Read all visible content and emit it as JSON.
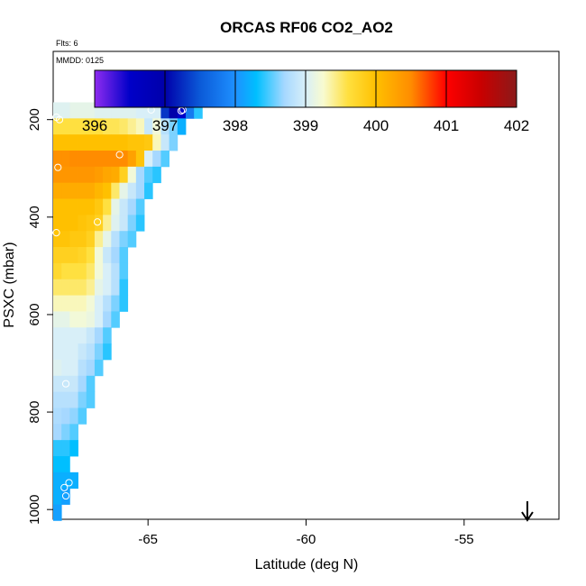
{
  "chart_data": {
    "type": "heatmap",
    "title": "ORCAS RF06 CO2_AO2",
    "flights_note": "Flts: 6",
    "date_note": "MMDD: 0125",
    "xlabel": "Latitude (deg N)",
    "ylabel": "PSXC (mbar)",
    "xlim": [
      -68.0,
      -52.0
    ],
    "ylim": [
      1020,
      60
    ],
    "y_reversed": true,
    "x_ticks": [
      -65,
      -60,
      -55
    ],
    "x_tick_labels": [
      "-65",
      "-60",
      "-55"
    ],
    "y_ticks": [
      200,
      400,
      600,
      800,
      1000
    ],
    "y_tick_labels": [
      "200",
      "400",
      "600",
      "800",
      "1000"
    ],
    "colorbar": {
      "min": 396,
      "max": 402,
      "ticks": [
        396,
        397,
        398,
        399,
        400,
        401,
        402
      ],
      "tick_labels": [
        "396",
        "397",
        "398",
        "399",
        "400",
        "401",
        "402"
      ],
      "stops": [
        {
          "v": 396.0,
          "c": "#8f2cf0"
        },
        {
          "v": 396.5,
          "c": "#0000c8"
        },
        {
          "v": 397.0,
          "c": "#0000aa"
        },
        {
          "v": 397.5,
          "c": "#0b5ad8"
        },
        {
          "v": 398.0,
          "c": "#1e90ff"
        },
        {
          "v": 398.3,
          "c": "#00bfff"
        },
        {
          "v": 398.7,
          "c": "#a6d8ff"
        },
        {
          "v": 399.0,
          "c": "#d8eff8"
        },
        {
          "v": 399.25,
          "c": "#f8fbd0"
        },
        {
          "v": 399.6,
          "c": "#ffe040"
        },
        {
          "v": 400.0,
          "c": "#ffc000"
        },
        {
          "v": 400.5,
          "c": "#ff8c00"
        },
        {
          "v": 401.0,
          "c": "#ff0000"
        },
        {
          "v": 401.5,
          "c": "#c80000"
        },
        {
          "v": 402.0,
          "c": "#8b1a1a"
        }
      ]
    },
    "cell_size": {
      "lat": 0.262,
      "p": 33
    },
    "bands": [
      {
        "p": 181,
        "start": -68.0,
        "values": [
          399.05,
          399.05,
          399.1,
          399.1,
          399.1,
          399.05,
          399.05,
          399.05,
          399.05,
          399.05,
          399.0,
          399.0,
          399.0,
          397.3,
          397.0,
          396.5,
          397.8,
          398.4
        ]
      },
      {
        "p": 214,
        "start": -68.0,
        "values": [
          399.6,
          399.6,
          399.6,
          399.6,
          399.6,
          399.6,
          399.55,
          399.55,
          399.5,
          399.4,
          399.3,
          398.9,
          399.2,
          398.8,
          398.6,
          398.2
        ]
      },
      {
        "p": 247,
        "start": -68.0,
        "values": [
          400.0,
          400.0,
          400.0,
          400.0,
          400.0,
          400.0,
          400.0,
          400.0,
          400.0,
          399.95,
          399.95,
          399.9,
          399.3,
          398.9,
          398.6
        ]
      },
      {
        "p": 280,
        "start": -68.0,
        "values": [
          400.45,
          400.45,
          400.5,
          400.5,
          400.5,
          400.5,
          400.5,
          400.5,
          400.5,
          400.3,
          399.95,
          399.0,
          398.7,
          398.5
        ]
      },
      {
        "p": 313,
        "start": -68.0,
        "values": [
          400.4,
          400.4,
          400.4,
          400.4,
          400.4,
          400.35,
          400.25,
          400.2,
          399.8,
          399.2,
          398.7,
          398.5,
          398.4
        ]
      },
      {
        "p": 346,
        "start": -68.0,
        "values": [
          400.2,
          400.2,
          400.2,
          400.2,
          400.2,
          400.1,
          400.0,
          399.5,
          399.1,
          398.9,
          398.7,
          398.4
        ]
      },
      {
        "p": 379,
        "start": -68.0,
        "values": [
          400.0,
          400.0,
          400.0,
          400.0,
          400.0,
          399.9,
          399.6,
          399.1,
          398.9,
          398.7,
          398.5
        ]
      },
      {
        "p": 412,
        "start": -68.0,
        "values": [
          400.0,
          400.0,
          400.0,
          399.95,
          399.9,
          399.8,
          399.4,
          399.05,
          398.9,
          398.6,
          398.4
        ]
      },
      {
        "p": 445,
        "start": -68.0,
        "values": [
          399.95,
          399.95,
          399.9,
          399.9,
          399.8,
          399.4,
          399.1,
          398.8,
          398.6,
          398.5
        ]
      },
      {
        "p": 478,
        "start": -68.0,
        "values": [
          399.8,
          399.8,
          399.8,
          399.75,
          399.6,
          399.2,
          398.9,
          398.7,
          398.5
        ]
      },
      {
        "p": 511,
        "start": -68.0,
        "values": [
          399.7,
          399.6,
          399.6,
          399.6,
          399.5,
          399.2,
          399.0,
          398.8,
          398.5
        ]
      },
      {
        "p": 544,
        "start": -68.0,
        "values": [
          399.5,
          399.5,
          399.5,
          399.5,
          399.4,
          399.1,
          399.0,
          398.8,
          398.4
        ]
      },
      {
        "p": 577,
        "start": -68.0,
        "values": [
          399.3,
          399.3,
          399.3,
          399.3,
          399.2,
          399.0,
          398.8,
          398.6,
          398.4
        ]
      },
      {
        "p": 610,
        "start": -68.0,
        "values": [
          399.1,
          399.1,
          399.2,
          399.2,
          399.15,
          399.0,
          398.7,
          398.5
        ]
      },
      {
        "p": 643,
        "start": -68.0,
        "values": [
          399.0,
          399.0,
          399.0,
          399.0,
          398.9,
          398.7,
          398.5
        ]
      },
      {
        "p": 676,
        "start": -68.0,
        "values": [
          399.0,
          399.0,
          399.0,
          398.9,
          398.8,
          398.6,
          398.4
        ]
      },
      {
        "p": 709,
        "start": -68.0,
        "values": [
          399.05,
          399.0,
          399.0,
          398.8,
          398.7,
          398.5
        ]
      },
      {
        "p": 742,
        "start": -68.0,
        "values": [
          398.9,
          398.9,
          398.9,
          398.7,
          398.5
        ]
      },
      {
        "p": 775,
        "start": -68.0,
        "values": [
          398.8,
          398.8,
          398.8,
          398.6,
          398.5
        ]
      },
      {
        "p": 808,
        "start": -68.0,
        "values": [
          398.75,
          398.7,
          398.65,
          398.5
        ]
      },
      {
        "p": 841,
        "start": -68.0,
        "values": [
          398.7,
          398.6,
          398.5
        ]
      },
      {
        "p": 874,
        "start": -68.0,
        "values": [
          398.4,
          398.4,
          398.3
        ]
      },
      {
        "p": 907,
        "start": -68.0,
        "values": [
          398.3,
          398.3
        ]
      },
      {
        "p": 940,
        "start": -68.0,
        "values": [
          398.2,
          398.2,
          398.2
        ]
      },
      {
        "p": 973,
        "start": -68.0,
        "values": [
          398.2,
          398.1
        ]
      },
      {
        "p": 1006,
        "start": -68.0,
        "values": [
          398.1
        ]
      }
    ],
    "markers": [
      {
        "lat": -67.9,
        "p": 195
      },
      {
        "lat": -67.8,
        "p": 200
      },
      {
        "lat": -64.9,
        "p": 180
      },
      {
        "lat": -63.9,
        "p": 180
      },
      {
        "lat": -63.95,
        "p": 182
      },
      {
        "lat": -65.9,
        "p": 272
      },
      {
        "lat": -67.85,
        "p": 298
      },
      {
        "lat": -66.6,
        "p": 410
      },
      {
        "lat": -67.9,
        "p": 432
      },
      {
        "lat": -67.6,
        "p": 742
      },
      {
        "lat": -67.5,
        "p": 945
      },
      {
        "lat": -67.65,
        "p": 955
      },
      {
        "lat": -67.6,
        "p": 972
      }
    ],
    "arrow_marker": {
      "lat": -53.0
    }
  }
}
